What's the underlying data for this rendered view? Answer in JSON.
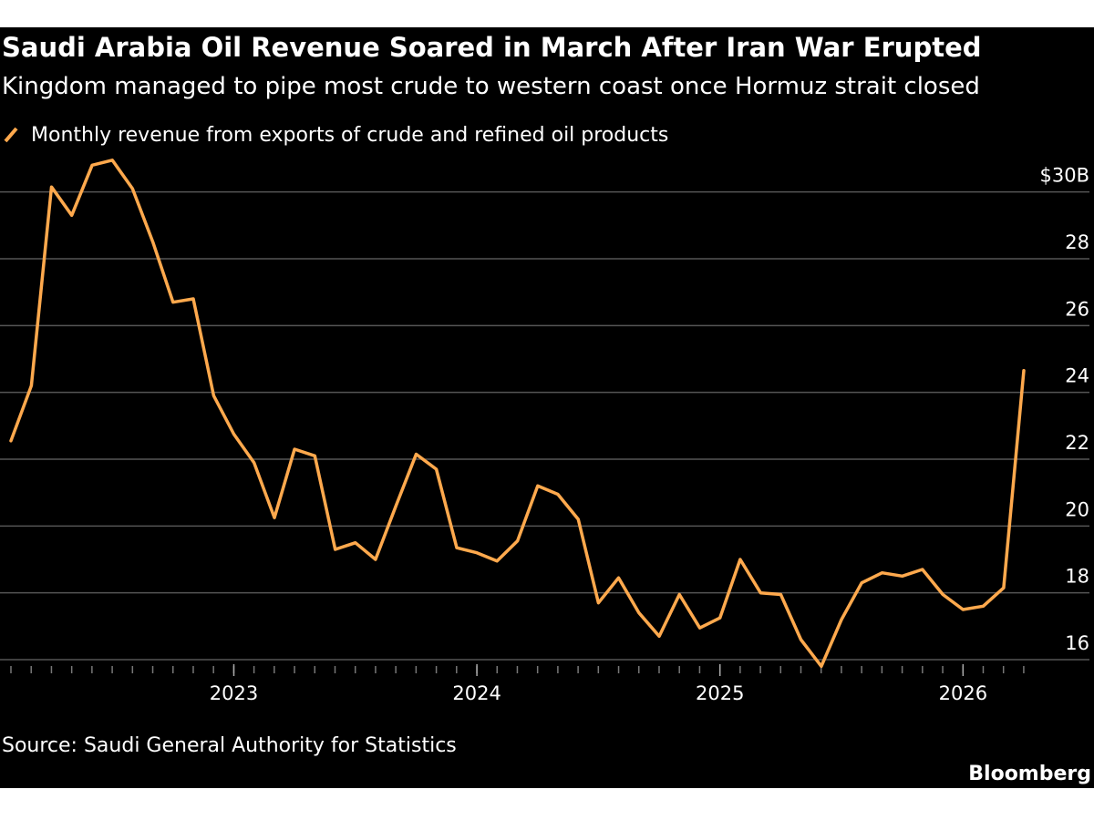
{
  "chart_data": {
    "type": "line",
    "title": "Saudi Arabia Oil Revenue Soared in March After Iran War Erupted",
    "subtitle": "Kingdom managed to pipe most crude to western coast once Hormuz strait closed",
    "source": "Source: Saudi General Authority for Statistics",
    "brand": "Bloomberg",
    "x": [
      2022.083,
      2022.167,
      2022.25,
      2022.333,
      2022.417,
      2022.5,
      2022.583,
      2022.667,
      2022.75,
      2022.833,
      2022.917,
      2023.0,
      2023.083,
      2023.167,
      2023.25,
      2023.333,
      2023.417,
      2023.5,
      2023.583,
      2023.667,
      2023.75,
      2023.833,
      2023.917,
      2024.0,
      2024.083,
      2024.167,
      2024.25,
      2024.333,
      2024.417,
      2024.5,
      2024.583,
      2024.667,
      2024.75,
      2024.833,
      2024.917,
      2025.0,
      2025.083,
      2025.167,
      2025.25,
      2025.333,
      2025.417,
      2025.5,
      2025.583,
      2025.667,
      2025.75,
      2025.833,
      2025.917,
      2026.0,
      2026.083,
      2026.167,
      2026.25
    ],
    "series": [
      {
        "name": "Monthly revenue from exports of crude and refined oil products",
        "color": "#ffa94d",
        "values": [
          22.55,
          24.2,
          30.15,
          29.3,
          30.8,
          30.95,
          30.1,
          28.5,
          26.7,
          26.8,
          23.9,
          22.75,
          21.9,
          20.25,
          22.3,
          22.1,
          19.3,
          19.5,
          19.0,
          20.6,
          22.15,
          21.7,
          19.35,
          19.2,
          18.95,
          19.55,
          21.2,
          20.95,
          20.2,
          17.7,
          18.45,
          17.4,
          16.7,
          17.95,
          16.95,
          17.25,
          19.0,
          18.0,
          17.95,
          16.6,
          15.8,
          17.2,
          18.3,
          18.6,
          18.5,
          18.7,
          17.95,
          17.5,
          17.6,
          18.15,
          24.65
        ]
      }
    ],
    "xlim": [
      2022.083,
      2026.25
    ],
    "xticks": [
      2023,
      2024,
      2025,
      2026
    ],
    "ylim": [
      15.7,
      31.0
    ],
    "yticks": [
      16,
      18,
      20,
      22,
      24,
      26,
      28,
      {
        "value": 30,
        "label": "$30B"
      }
    ],
    "grid": true
  }
}
